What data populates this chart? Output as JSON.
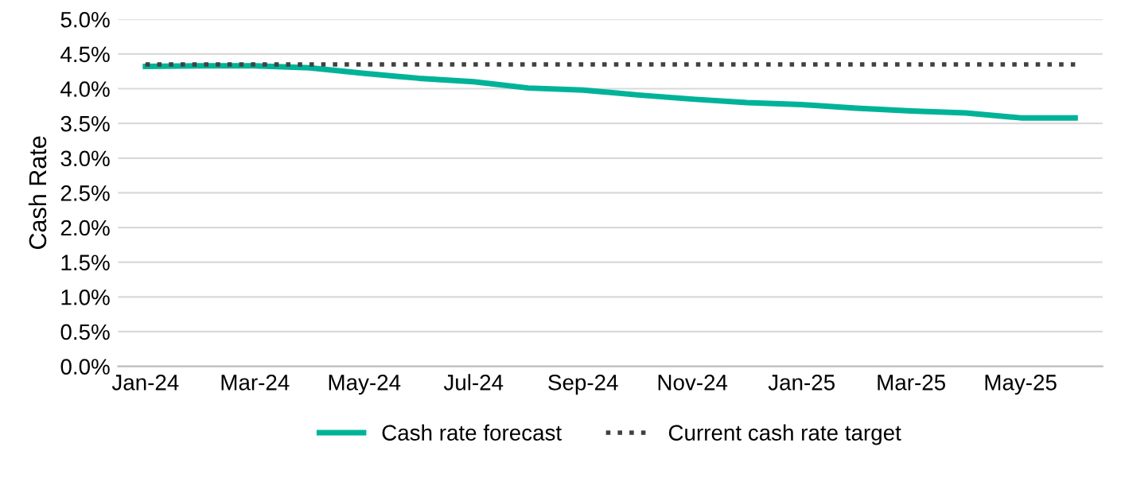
{
  "chart_data": {
    "type": "line",
    "ylabel": "Cash Rate",
    "categories": [
      "Jan-24",
      null,
      "Mar-24",
      null,
      "May-24",
      null,
      "Jul-24",
      null,
      "Sep-24",
      null,
      "Nov-24",
      null,
      "Jan-25",
      null,
      "Mar-25",
      null,
      "May-25",
      null
    ],
    "series": [
      {
        "name": "Cash rate forecast",
        "color": "#00b398",
        "line_style": "solid",
        "values": [
          4.32,
          4.33,
          4.33,
          4.3,
          4.22,
          4.15,
          4.1,
          4.01,
          3.98,
          3.91,
          3.85,
          3.8,
          3.77,
          3.72,
          3.68,
          3.65,
          3.58,
          3.58
        ]
      },
      {
        "name": "Current cash rate target",
        "color": "#404040",
        "line_style": "dotted",
        "values": [
          4.35,
          4.35,
          4.35,
          4.35,
          4.35,
          4.35,
          4.35,
          4.35,
          4.35,
          4.35,
          4.35,
          4.35,
          4.35,
          4.35,
          4.35,
          4.35,
          4.35,
          4.35
        ]
      }
    ],
    "ylim": [
      0,
      5
    ],
    "yticks": [
      {
        "value": 0,
        "label": "0.0%"
      },
      {
        "value": 0.5,
        "label": "0.5%"
      },
      {
        "value": 1,
        "label": "1.0%"
      },
      {
        "value": 1.5,
        "label": "1.5%"
      },
      {
        "value": 2,
        "label": "2.0%"
      },
      {
        "value": 2.5,
        "label": "2.5%"
      },
      {
        "value": 3,
        "label": "3.0%"
      },
      {
        "value": 3.5,
        "label": "3.5%"
      },
      {
        "value": 4,
        "label": "4.0%"
      },
      {
        "value": 4.5,
        "label": "4.5%"
      },
      {
        "value": 5,
        "label": "5.0%"
      }
    ],
    "grid": "y",
    "legend": "bottom",
    "marker": "none"
  }
}
